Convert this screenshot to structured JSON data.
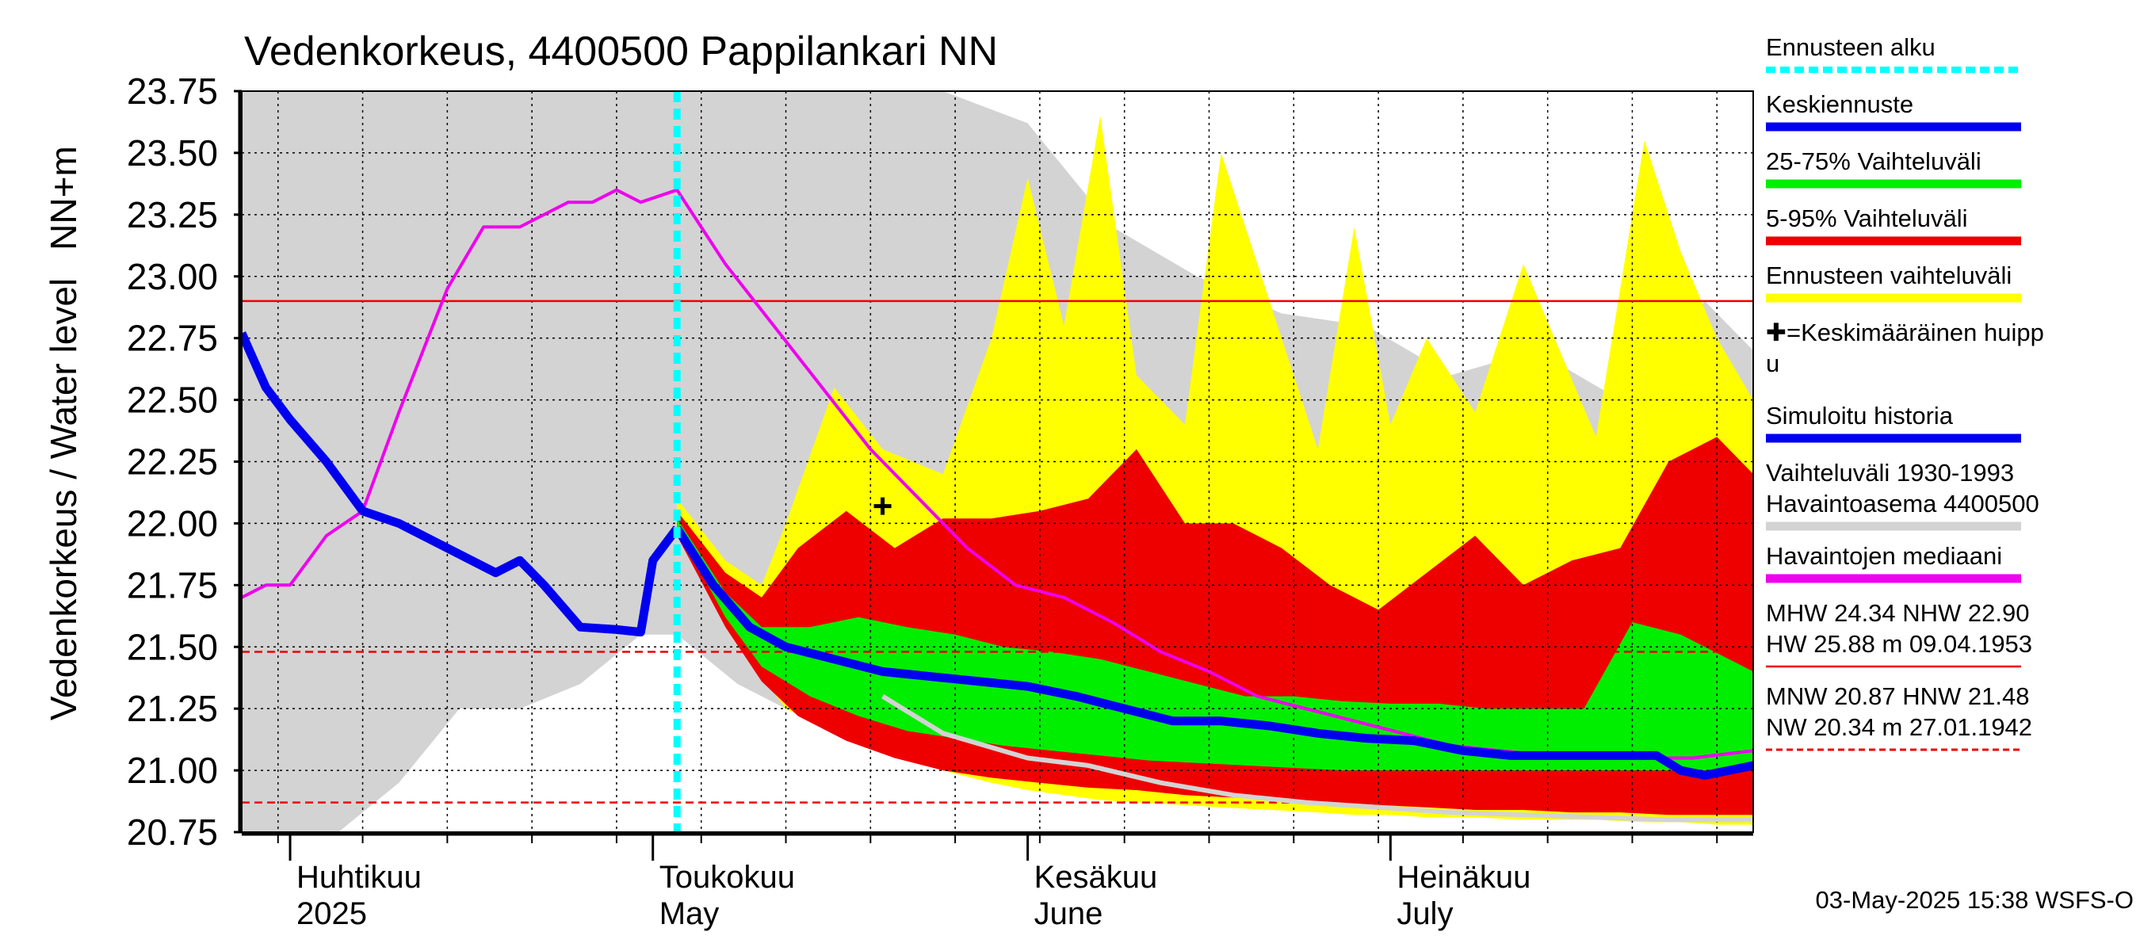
{
  "chart_data": {
    "type": "area",
    "title": "Vedenkorkeus, 4400500 Pappilankari NN",
    "ylabel_lines": [
      "Vedenkorkeus / Water level",
      "NN+m"
    ],
    "ylim": [
      20.75,
      23.75
    ],
    "yticks": [
      "20.75",
      "21.00",
      "21.25",
      "21.50",
      "21.75",
      "22.00",
      "22.25",
      "22.50",
      "22.75",
      "23.00",
      "23.25",
      "23.50",
      "23.75"
    ],
    "x_start": "2025-03-28",
    "x_end": "2025-07-31",
    "month_labels": [
      {
        "line1": "Huhtikuu",
        "line2": "2025",
        "date": "2025-04-01"
      },
      {
        "line1": "Toukokuu",
        "line2": "May",
        "date": "2025-05-01"
      },
      {
        "line1": "Kesäkuu",
        "line2": "June",
        "date": "2025-06-01"
      },
      {
        "line1": "Heinäkuu",
        "line2": "July",
        "date": "2025-07-01"
      }
    ],
    "forecast_start": "2025-05-03",
    "hlines": [
      {
        "y": 22.9,
        "color": "#ee0000",
        "style": "solid"
      },
      {
        "y": 21.48,
        "color": "#ee0000",
        "style": "dashed"
      },
      {
        "y": 20.87,
        "color": "#ee0000",
        "style": "dashed"
      }
    ],
    "series": [
      {
        "name": "Vaihteluväli 1930-1993 Havaintoasema 4400500",
        "kind": "band",
        "color": "#d3d3d3",
        "x": [
          "2025-03-28",
          "2025-04-05",
          "2025-04-10",
          "2025-04-15",
          "2025-04-20",
          "2025-04-25",
          "2025-04-30",
          "2025-05-03",
          "2025-05-08",
          "2025-05-12",
          "2025-05-18",
          "2025-05-25",
          "2025-06-01",
          "2025-06-08",
          "2025-06-15",
          "2025-06-22",
          "2025-06-29",
          "2025-07-06",
          "2025-07-13",
          "2025-07-20",
          "2025-07-27",
          "2025-07-31"
        ],
        "low": [
          20.75,
          20.75,
          20.95,
          21.25,
          21.25,
          21.35,
          21.55,
          21.55,
          21.35,
          21.25,
          21.15,
          21.05,
          21.0,
          20.95,
          20.9,
          20.85,
          20.83,
          20.82,
          20.81,
          20.8,
          20.8,
          20.8
        ],
        "high": [
          23.75,
          23.75,
          23.75,
          23.75,
          23.75,
          23.75,
          23.75,
          23.75,
          23.75,
          23.75,
          23.75,
          23.75,
          23.62,
          23.2,
          23.0,
          22.85,
          22.8,
          22.6,
          22.7,
          22.5,
          22.9,
          22.7
        ]
      },
      {
        "name": "Ennusteen vaihteluväli",
        "kind": "band",
        "color": "#ffff00",
        "x": [
          "2025-05-03",
          "2025-05-07",
          "2025-05-10",
          "2025-05-12",
          "2025-05-16",
          "2025-05-20",
          "2025-05-25",
          "2025-05-29",
          "2025-06-01",
          "2025-06-04",
          "2025-06-07",
          "2025-06-10",
          "2025-06-14",
          "2025-06-17",
          "2025-06-21",
          "2025-06-25",
          "2025-06-28",
          "2025-07-01",
          "2025-07-04",
          "2025-07-08",
          "2025-07-12",
          "2025-07-15",
          "2025-07-18",
          "2025-07-22",
          "2025-07-25",
          "2025-07-28",
          "2025-07-31"
        ],
        "low": [
          21.95,
          21.6,
          21.38,
          21.25,
          21.15,
          21.08,
          21.0,
          20.95,
          20.92,
          20.9,
          20.88,
          20.87,
          20.86,
          20.85,
          20.84,
          20.83,
          20.82,
          20.82,
          20.81,
          20.81,
          20.8,
          20.8,
          20.8,
          20.79,
          20.79,
          20.78,
          20.78
        ],
        "high": [
          22.1,
          21.85,
          21.75,
          22.0,
          22.55,
          22.3,
          22.2,
          22.75,
          23.4,
          22.8,
          23.65,
          22.6,
          22.4,
          23.5,
          22.9,
          22.3,
          23.2,
          22.4,
          22.75,
          22.45,
          23.05,
          22.7,
          22.35,
          23.55,
          23.1,
          22.75,
          22.5
        ]
      },
      {
        "name": "5-95% Vaihteluväli",
        "kind": "band",
        "color": "#ee0000",
        "x": [
          "2025-05-03",
          "2025-05-07",
          "2025-05-10",
          "2025-05-13",
          "2025-05-17",
          "2025-05-21",
          "2025-05-25",
          "2025-05-29",
          "2025-06-02",
          "2025-06-06",
          "2025-06-10",
          "2025-06-14",
          "2025-06-18",
          "2025-06-22",
          "2025-06-26",
          "2025-06-30",
          "2025-07-04",
          "2025-07-08",
          "2025-07-12",
          "2025-07-16",
          "2025-07-20",
          "2025-07-24",
          "2025-07-28",
          "2025-07-31"
        ],
        "low": [
          21.95,
          21.58,
          21.36,
          21.22,
          21.12,
          21.05,
          21.0,
          20.97,
          20.95,
          20.93,
          20.92,
          20.9,
          20.89,
          20.88,
          20.87,
          20.86,
          20.85,
          20.84,
          20.84,
          20.83,
          20.83,
          20.82,
          20.82,
          20.82
        ],
        "high": [
          22.05,
          21.8,
          21.7,
          21.9,
          22.05,
          21.9,
          22.02,
          22.02,
          22.05,
          22.1,
          22.3,
          22.0,
          22.0,
          21.9,
          21.75,
          21.65,
          21.8,
          21.95,
          21.75,
          21.85,
          21.9,
          22.25,
          22.35,
          22.2
        ]
      },
      {
        "name": "25-75% Vaihteluväli",
        "kind": "band",
        "color": "#00ee00",
        "x": [
          "2025-05-03",
          "2025-05-07",
          "2025-05-10",
          "2025-05-14",
          "2025-05-18",
          "2025-05-22",
          "2025-05-26",
          "2025-05-30",
          "2025-06-03",
          "2025-06-07",
          "2025-06-11",
          "2025-06-15",
          "2025-06-19",
          "2025-06-23",
          "2025-06-27",
          "2025-07-01",
          "2025-07-05",
          "2025-07-09",
          "2025-07-13",
          "2025-07-17",
          "2025-07-21",
          "2025-07-25",
          "2025-07-29",
          "2025-07-31"
        ],
        "low": [
          21.98,
          21.62,
          21.42,
          21.3,
          21.22,
          21.16,
          21.13,
          21.1,
          21.08,
          21.06,
          21.04,
          21.03,
          21.02,
          21.01,
          21.0,
          21.0,
          21.0,
          21.0,
          21.0,
          21.0,
          21.0,
          21.0,
          21.0,
          21.0
        ],
        "high": [
          22.02,
          21.72,
          21.58,
          21.58,
          21.62,
          21.58,
          21.55,
          21.5,
          21.48,
          21.45,
          21.4,
          21.35,
          21.3,
          21.3,
          21.28,
          21.27,
          21.27,
          21.25,
          21.25,
          21.25,
          21.6,
          21.55,
          21.45,
          21.4
        ]
      },
      {
        "name": "Havaintojen mediaani",
        "kind": "line",
        "color": "#ee00ee",
        "x": [
          "2025-03-28",
          "2025-03-30",
          "2025-04-01",
          "2025-04-04",
          "2025-04-07",
          "2025-04-10",
          "2025-04-14",
          "2025-04-17",
          "2025-04-20",
          "2025-04-24",
          "2025-04-26",
          "2025-04-28",
          "2025-04-30",
          "2025-05-03",
          "2025-05-07",
          "2025-05-11",
          "2025-05-15",
          "2025-05-19",
          "2025-05-23",
          "2025-05-27",
          "2025-05-31",
          "2025-06-04",
          "2025-06-08",
          "2025-06-12",
          "2025-06-16",
          "2025-06-20",
          "2025-06-24",
          "2025-06-28",
          "2025-07-02",
          "2025-07-06",
          "2025-07-10",
          "2025-07-14",
          "2025-07-18",
          "2025-07-22",
          "2025-07-26",
          "2025-07-31"
        ],
        "y": [
          21.7,
          21.75,
          21.75,
          21.95,
          22.05,
          22.45,
          22.95,
          23.2,
          23.2,
          23.3,
          23.3,
          23.35,
          23.3,
          23.35,
          23.05,
          22.8,
          22.55,
          22.3,
          22.1,
          21.9,
          21.75,
          21.7,
          21.6,
          21.48,
          21.4,
          21.3,
          21.25,
          21.2,
          21.15,
          21.1,
          21.08,
          21.06,
          21.05,
          21.05,
          21.05,
          21.08
        ]
      },
      {
        "name": "Simuloitu historia",
        "kind": "line",
        "color": "#0000ee",
        "x": [
          "2025-03-28",
          "2025-03-30",
          "2025-04-01",
          "2025-04-04",
          "2025-04-07",
          "2025-04-10",
          "2025-04-14",
          "2025-04-18",
          "2025-04-20",
          "2025-04-22",
          "2025-04-25",
          "2025-04-28",
          "2025-04-30",
          "2025-05-01",
          "2025-05-03"
        ],
        "y": [
          22.77,
          22.55,
          22.42,
          22.25,
          22.05,
          22.0,
          21.9,
          21.8,
          21.85,
          21.75,
          21.58,
          21.57,
          21.56,
          21.85,
          21.98
        ]
      },
      {
        "name": "Keskiennuste",
        "kind": "line",
        "color": "#0000ee",
        "x": [
          "2025-05-03",
          "2025-05-06",
          "2025-05-09",
          "2025-05-12",
          "2025-05-16",
          "2025-05-20",
          "2025-05-24",
          "2025-05-28",
          "2025-06-01",
          "2025-06-05",
          "2025-06-09",
          "2025-06-13",
          "2025-06-17",
          "2025-06-21",
          "2025-06-25",
          "2025-06-29",
          "2025-07-03",
          "2025-07-07",
          "2025-07-11",
          "2025-07-15",
          "2025-07-19",
          "2025-07-23",
          "2025-07-25",
          "2025-07-27",
          "2025-07-29",
          "2025-07-31"
        ],
        "y": [
          21.98,
          21.75,
          21.58,
          21.5,
          21.45,
          21.4,
          21.38,
          21.36,
          21.34,
          21.3,
          21.25,
          21.2,
          21.2,
          21.18,
          21.15,
          21.13,
          21.12,
          21.08,
          21.06,
          21.06,
          21.06,
          21.06,
          21.0,
          20.98,
          21.0,
          21.02
        ]
      },
      {
        "name": "Havaintoasema 4400500",
        "kind": "line",
        "color": "#d3d3d3",
        "x": [
          "2025-05-20",
          "2025-05-25",
          "2025-06-01",
          "2025-06-06",
          "2025-06-12",
          "2025-06-18",
          "2025-06-24",
          "2025-06-30",
          "2025-07-06",
          "2025-07-12",
          "2025-07-18",
          "2025-07-24",
          "2025-07-31"
        ],
        "y": [
          21.3,
          21.15,
          21.05,
          21.02,
          20.95,
          20.9,
          20.87,
          20.85,
          20.83,
          20.82,
          20.81,
          20.8,
          20.8
        ]
      }
    ],
    "mean_peak": {
      "x": "2025-05-20",
      "y": 22.07
    },
    "legend_position": "right",
    "legend": [
      {
        "label": "Ennusteen alku",
        "color": "#00ffff",
        "style": "dotted"
      },
      {
        "label": "Keskiennuste",
        "color": "#0000ee",
        "style": "solid"
      },
      {
        "label": "25-75% Vaihteluväli",
        "color": "#00ee00",
        "style": "solid"
      },
      {
        "label": "5-95% Vaihteluväli",
        "color": "#ee0000",
        "style": "solid"
      },
      {
        "label": "Ennusteen vaihteluväli",
        "color": "#ffff00",
        "style": "solid"
      },
      {
        "label": "✚=Keskimääräinen huipp",
        "label2": "u",
        "color": "",
        "style": "none"
      },
      {
        "label": "Simuloitu historia",
        "color": "#0000ee",
        "style": "solid"
      },
      {
        "label": "Vaihteluväli 1930-1993",
        "label2": " Havaintoasema 4400500",
        "color": "#d3d3d3",
        "style": "solid"
      },
      {
        "label": "Havaintojen mediaani",
        "color": "#ee00ee",
        "style": "solid"
      },
      {
        "label": "MHW  24.34 NHW  22.90",
        "label2": "HW  25.88 m 09.04.1953",
        "color": "#ee0000",
        "style": "solid-thin"
      },
      {
        "label": "MNW  20.87 HNW  21.48",
        "label2": "NW  20.34 m 27.01.1942",
        "color": "#ee0000",
        "style": "dashed"
      }
    ],
    "footer": "03-May-2025 15:38 WSFS-O"
  }
}
